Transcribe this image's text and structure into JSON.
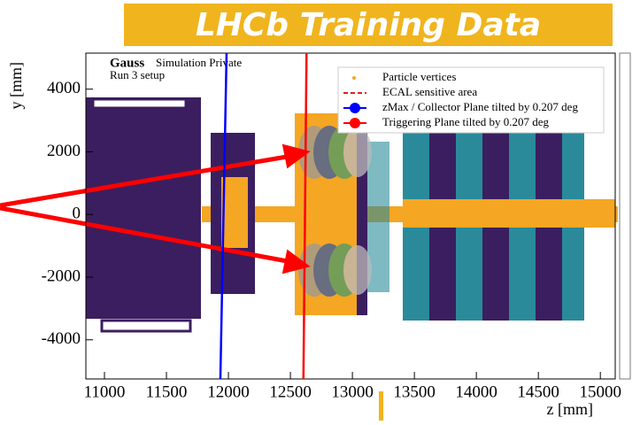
{
  "banner": "LHCb Training Data",
  "chart_data": {
    "type": "line",
    "annotations": [
      "Gauss",
      "Simulation Private",
      "Run 3 setup"
    ],
    "x_label": "z [mm]",
    "y_label": "y [mm]",
    "xlim": [
      10850,
      15120
    ],
    "ylim": [
      -5250,
      5150
    ],
    "xticks": [
      11000,
      11500,
      12000,
      12500,
      13000,
      13500,
      14000,
      14500,
      15000
    ],
    "yticks": [
      -4000,
      -2000,
      0,
      2000,
      4000
    ],
    "legend": [
      {
        "label": "Particle vertices",
        "color": "#f5a623",
        "style": "dot"
      },
      {
        "label": "ECAL sensitive area",
        "color": "#e02020",
        "style": "dashed"
      },
      {
        "label": "zMax / Collector Plane tilted by 0.207 deg",
        "color": "#0000ff",
        "style": "line"
      },
      {
        "label": "Triggering Plane tilted by 0.207 deg",
        "color": "#ff0000",
        "style": "line"
      }
    ],
    "series": [
      {
        "name": "zMax / Collector Plane tilted by 0.207 deg",
        "color": "#0000ff",
        "x": [
          11985,
          11935
        ],
        "y": [
          5150,
          -5250
        ]
      },
      {
        "name": "Triggering Plane tilted by 0.207 deg",
        "color": "#ff0000",
        "x": [
          12630,
          12605
        ],
        "y": [
          5150,
          -5250
        ]
      }
    ]
  }
}
